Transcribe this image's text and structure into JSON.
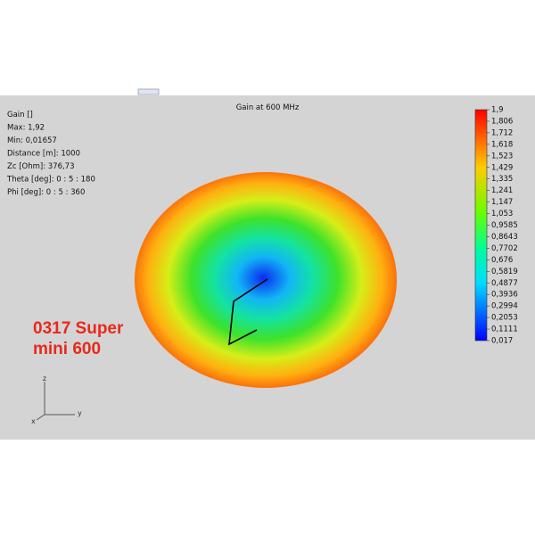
{
  "window": {
    "title": "Gain at 600 MHz"
  },
  "info": [
    "Gain []",
    "Max: 1,92",
    "Min: 0,01657",
    "Distance [m]: 1000",
    "Zc [Ohm]: 376,73",
    "Theta [deg]: 0 : 5 : 180",
    "Phi [deg]: 0 : 5 : 360"
  ],
  "colorbar": {
    "labels": [
      "1,9",
      "1,806",
      "1,712",
      "1,618",
      "1,523",
      "1,429",
      "1,335",
      "1,241",
      "1,147",
      "1,053",
      "0,9585",
      "0,8643",
      "0,7702",
      "0,676",
      "0,5819",
      "0,4877",
      "0,3936",
      "0,2994",
      "0,2053",
      "0,1111",
      "0,017"
    ]
  },
  "annotation": [
    "0317 Super",
    "mini 600"
  ],
  "axes": {
    "z": "z",
    "y": "y",
    "x": "x"
  }
}
